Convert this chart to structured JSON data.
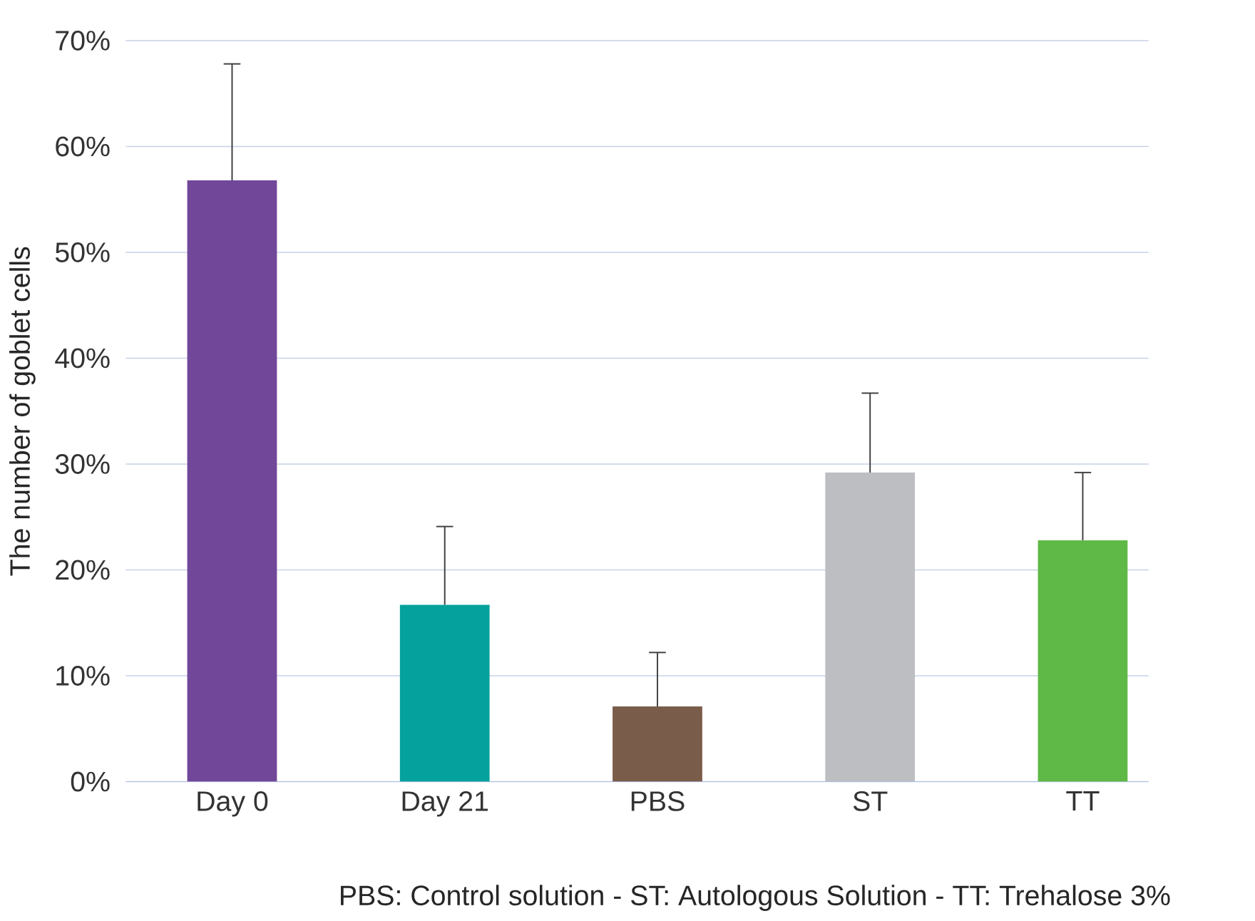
{
  "chart_data": {
    "type": "bar",
    "ylabel": "The number of goblet cells",
    "categories": [
      "Day 0",
      "Day 21",
      "PBS",
      "ST",
      "TT"
    ],
    "values": [
      56.8,
      16.7,
      7.1,
      29.2,
      22.8
    ],
    "colors": [
      "#71479a",
      "#05a19c",
      "#7a5c4a",
      "#bdbec2",
      "#5fb946"
    ],
    "errors": [
      [
        56.8,
        67.8
      ],
      [
        16.7,
        24.1
      ],
      [
        7.1,
        12.2
      ],
      [
        29.2,
        36.7
      ],
      [
        22.8,
        29.2
      ]
    ],
    "ylim": [
      0,
      70
    ],
    "yticks": [
      {
        "value": 0,
        "label": "0%"
      },
      {
        "value": 10,
        "label": "10%"
      },
      {
        "value": 20,
        "label": "20%"
      },
      {
        "value": 30,
        "label": "30%"
      },
      {
        "value": 40,
        "label": "40%"
      },
      {
        "value": 50,
        "label": "50%"
      },
      {
        "value": 60,
        "label": "60%"
      },
      {
        "value": 70,
        "label": "70%"
      }
    ],
    "grid": "y",
    "annotations": [
      "PBS: Control solution - ST: Autologous Solution - TT: Trehalose 3%"
    ]
  }
}
